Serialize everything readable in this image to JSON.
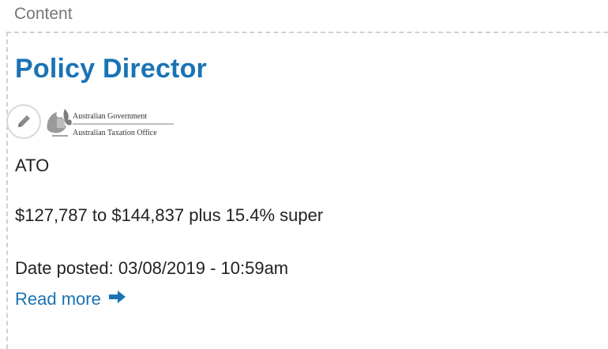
{
  "section": {
    "label": "Content"
  },
  "job": {
    "title": "Policy Director",
    "logo": {
      "line1": "Australian Government",
      "line2": "Australian Taxation Office",
      "icon": "coat-of-arms-icon"
    },
    "organisation": "ATO",
    "salary": "$127,787 to $144,837 plus 15.4% super",
    "date_posted": "Date posted: 03/08/2019 - 10:59am",
    "read_more_label": "Read more",
    "read_more_icon": "arrow-right-icon",
    "edit_icon": "pencil-icon"
  },
  "colors": {
    "link": "#1a73b5",
    "text": "#222222",
    "muted": "#767676",
    "dashed_border": "#d2d2d2"
  }
}
